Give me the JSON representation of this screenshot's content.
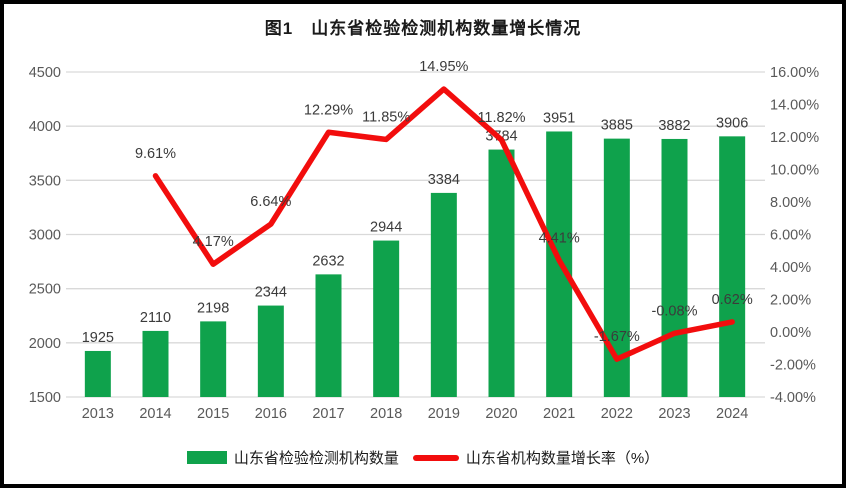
{
  "header": {
    "title": "图1　山东省检验检测机构数量增长情况"
  },
  "colors": {
    "bar_green": "#0FA24C",
    "line_red": "#F20D0D",
    "grid": "#D9D9D9",
    "axis_text": "#595959",
    "data_label_text": "#3B3B3B",
    "frame_border": "#000000",
    "background": "#FFFFFF"
  },
  "chart_data": {
    "type": "bar",
    "title": "图1　山东省检验检测机构数量增长情况",
    "categories": [
      "2013",
      "2014",
      "2015",
      "2016",
      "2017",
      "2018",
      "2019",
      "2020",
      "2021",
      "2022",
      "2023",
      "2024"
    ],
    "series": [
      {
        "name": "山东省检验检测机构数量",
        "type": "bar",
        "axis": "left",
        "color": "#0FA24C",
        "values": [
          1925,
          2110,
          2198,
          2344,
          2632,
          2944,
          3384,
          3784,
          3951,
          3885,
          3882,
          3906
        ],
        "labels": [
          "1925",
          "2110",
          "2198",
          "2344",
          "2632",
          "2944",
          "3384",
          "3784",
          "3951",
          "3885",
          "3882",
          "3906"
        ]
      },
      {
        "name": "山东省机构数量增长率（%）",
        "type": "line",
        "axis": "right",
        "color": "#F20D0D",
        "values": [
          null,
          9.61,
          4.17,
          6.64,
          12.29,
          11.85,
          14.95,
          11.82,
          4.41,
          -1.67,
          -0.08,
          0.62
        ],
        "labels": [
          null,
          "9.61%",
          "4.17%",
          "6.64%",
          "12.29%",
          "11.85%",
          "14.95%",
          "11.82%",
          "4.41%",
          "-1.67%",
          "-0.08%",
          "0.62%"
        ]
      }
    ],
    "left_axis": {
      "min": 1500,
      "max": 4500,
      "step": 500,
      "ticks": [
        "4500",
        "4000",
        "3500",
        "3000",
        "2500",
        "2000",
        "1500"
      ]
    },
    "right_axis": {
      "min": -4,
      "max": 16,
      "step": 2,
      "ticks": [
        "16.00%",
        "14.00%",
        "12.00%",
        "10.00%",
        "8.00%",
        "6.00%",
        "4.00%",
        "2.00%",
        "0.00%",
        "-2.00%",
        "-4.00%"
      ]
    },
    "grid": true,
    "legend_position": "bottom",
    "xlabel": "",
    "ylabel_left": "",
    "ylabel_right": ""
  }
}
